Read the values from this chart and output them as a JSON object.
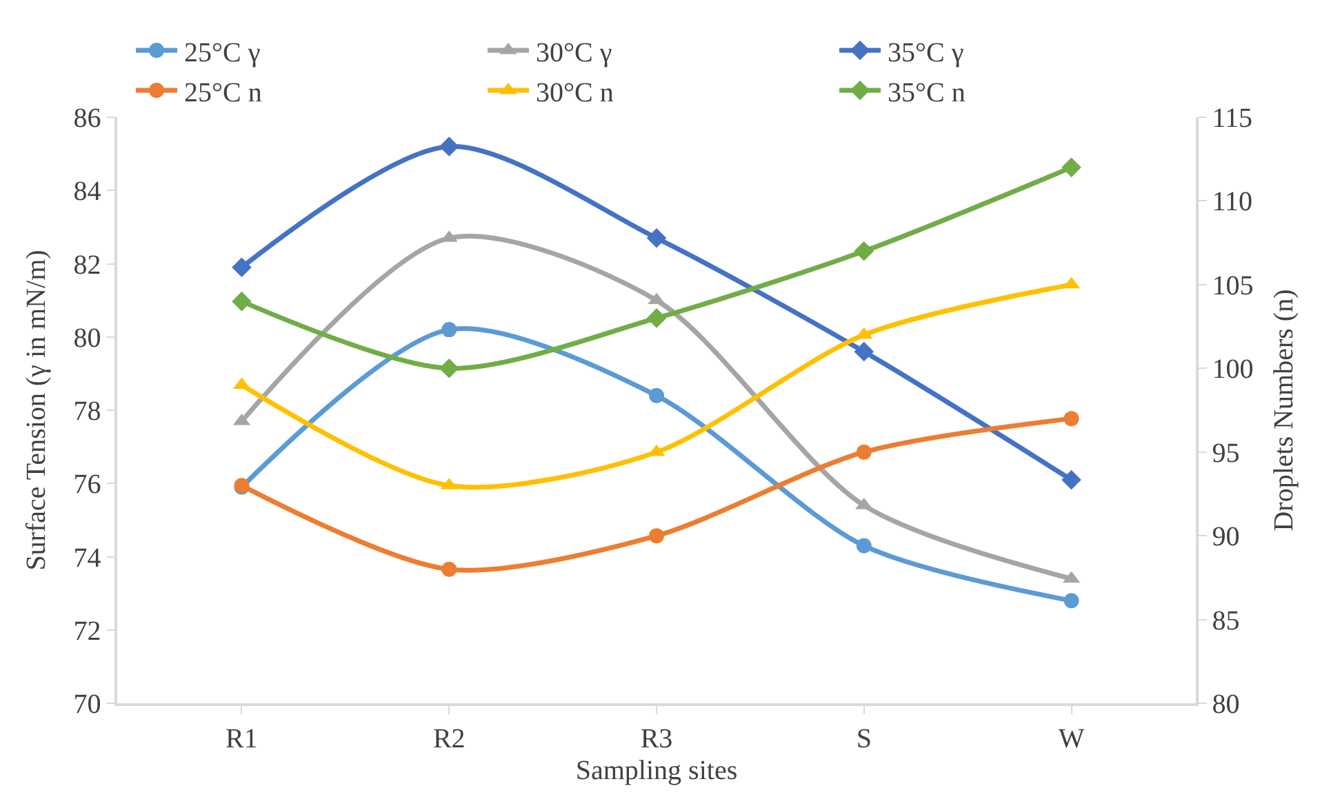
{
  "chart_data": {
    "type": "line",
    "xlabel": "Sampling sites",
    "ylabel": "Surface Tension (γ in mN/m)",
    "y2label": "Droplets Numbers (n)",
    "categories": [
      "R1",
      "R2",
      "R3",
      "S",
      "W"
    ],
    "series": [
      {
        "name": "25°C γ",
        "color": "#5b9bd5",
        "marker": "circle",
        "values": [
          75.9,
          80.2,
          78.4,
          74.3,
          72.8
        ]
      },
      {
        "name": "30°C γ",
        "color": "#a5a5a5",
        "marker": "triangle",
        "values": [
          77.7,
          82.7,
          81.0,
          75.4,
          73.4
        ]
      },
      {
        "name": "35°C γ",
        "color": "#4472c4",
        "marker": "diamond",
        "values": [
          81.9,
          85.2,
          82.7,
          79.6,
          76.1
        ]
      },
      {
        "name": "25°C n",
        "color": "#ed7d31",
        "marker": "circle",
        "axis": "y2",
        "values": [
          93,
          88,
          90,
          95,
          97
        ]
      },
      {
        "name": "30°C n",
        "color": "#ffc000",
        "marker": "triangle",
        "axis": "y2",
        "values": [
          99,
          93,
          95,
          102,
          105
        ]
      },
      {
        "name": "35°C n",
        "color": "#70ad47",
        "marker": "diamond",
        "axis": "y2",
        "values": [
          104,
          100,
          103,
          107,
          112
        ]
      }
    ],
    "ylim": [
      70,
      86
    ],
    "yticks": [
      70,
      72,
      74,
      76,
      78,
      80,
      82,
      84,
      86
    ],
    "y2lim": [
      80,
      115
    ],
    "y2ticks": [
      80,
      85,
      90,
      95,
      100,
      105,
      110,
      115
    ],
    "legend": "top",
    "line_style": "solid"
  }
}
